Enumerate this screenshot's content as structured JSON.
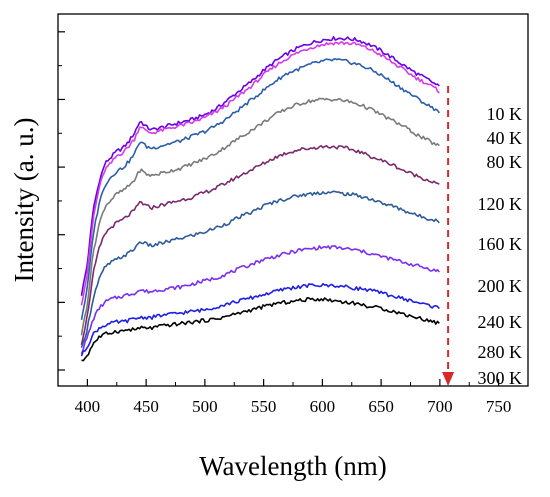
{
  "chart_data": {
    "type": "line",
    "xlabel": "Wavelength (nm)",
    "ylabel": "Intensity (a. u.)",
    "xlim": [
      375,
      775
    ],
    "x_ticks": [
      400,
      450,
      500,
      550,
      600,
      650,
      700,
      750
    ],
    "y_tick_labels_shown": false,
    "grid": false,
    "x": [
      395,
      400,
      405,
      410,
      415,
      420,
      425,
      430,
      435,
      440,
      445,
      450,
      455,
      460,
      470,
      480,
      490,
      500,
      510,
      520,
      530,
      540,
      550,
      560,
      570,
      580,
      590,
      600,
      610,
      620,
      630,
      640,
      650,
      660,
      670,
      680,
      690,
      700
    ],
    "series": [
      {
        "name": "10 K",
        "color": "#6a00e6",
        "values": [
          0.2,
          0.3,
          0.48,
          0.57,
          0.63,
          0.65,
          0.67,
          0.68,
          0.7,
          0.73,
          0.77,
          0.75,
          0.74,
          0.745,
          0.755,
          0.765,
          0.775,
          0.79,
          0.81,
          0.84,
          0.87,
          0.9,
          0.935,
          0.965,
          0.99,
          1.01,
          1.025,
          1.035,
          1.04,
          1.04,
          1.035,
          1.02,
          1.0,
          0.975,
          0.95,
          0.925,
          0.905,
          0.88
        ]
      },
      {
        "name": "40 K",
        "color": "#d43be8",
        "values": [
          0.17,
          0.27,
          0.45,
          0.55,
          0.61,
          0.63,
          0.655,
          0.665,
          0.685,
          0.71,
          0.755,
          0.735,
          0.73,
          0.735,
          0.745,
          0.755,
          0.765,
          0.78,
          0.8,
          0.825,
          0.855,
          0.885,
          0.92,
          0.95,
          0.975,
          0.995,
          1.01,
          1.02,
          1.025,
          1.025,
          1.02,
          1.005,
          0.985,
          0.96,
          0.935,
          0.91,
          0.89,
          0.865
        ]
      },
      {
        "name": "80 K",
        "color": "#2b5fa8",
        "values": [
          0.12,
          0.22,
          0.4,
          0.5,
          0.56,
          0.585,
          0.605,
          0.615,
          0.635,
          0.66,
          0.705,
          0.685,
          0.68,
          0.685,
          0.695,
          0.705,
          0.72,
          0.735,
          0.755,
          0.78,
          0.81,
          0.84,
          0.87,
          0.9,
          0.925,
          0.94,
          0.955,
          0.965,
          0.97,
          0.965,
          0.955,
          0.94,
          0.92,
          0.895,
          0.87,
          0.845,
          0.82,
          0.8
        ]
      },
      {
        "name": "120 K",
        "color": "#7a7a7a",
        "values": [
          0.07,
          0.17,
          0.34,
          0.43,
          0.49,
          0.51,
          0.53,
          0.54,
          0.555,
          0.575,
          0.61,
          0.595,
          0.59,
          0.595,
          0.605,
          0.615,
          0.63,
          0.645,
          0.665,
          0.69,
          0.715,
          0.74,
          0.765,
          0.79,
          0.81,
          0.825,
          0.835,
          0.84,
          0.84,
          0.835,
          0.825,
          0.81,
          0.79,
          0.77,
          0.75,
          0.725,
          0.705,
          0.685
        ]
      },
      {
        "name": "160 K",
        "color": "#7a2a6e",
        "values": [
          0.04,
          0.13,
          0.27,
          0.35,
          0.4,
          0.42,
          0.435,
          0.445,
          0.46,
          0.475,
          0.505,
          0.49,
          0.485,
          0.49,
          0.5,
          0.51,
          0.52,
          0.535,
          0.55,
          0.57,
          0.59,
          0.61,
          0.63,
          0.65,
          0.665,
          0.675,
          0.68,
          0.685,
          0.685,
          0.68,
          0.67,
          0.655,
          0.64,
          0.625,
          0.605,
          0.59,
          0.575,
          0.56
        ]
      },
      {
        "name": "200 K",
        "color": "#2d5b99",
        "values": [
          0.02,
          0.09,
          0.19,
          0.25,
          0.29,
          0.305,
          0.315,
          0.325,
          0.335,
          0.35,
          0.375,
          0.365,
          0.36,
          0.365,
          0.375,
          0.385,
          0.395,
          0.405,
          0.42,
          0.435,
          0.455,
          0.47,
          0.49,
          0.505,
          0.515,
          0.525,
          0.53,
          0.535,
          0.535,
          0.53,
          0.525,
          0.515,
          0.5,
          0.49,
          0.475,
          0.46,
          0.45,
          0.44
        ]
      },
      {
        "name": "240 K",
        "color": "#7b2ff0",
        "values": [
          0.01,
          0.06,
          0.12,
          0.155,
          0.175,
          0.185,
          0.19,
          0.195,
          0.2,
          0.205,
          0.215,
          0.21,
          0.21,
          0.215,
          0.22,
          0.225,
          0.235,
          0.245,
          0.255,
          0.27,
          0.285,
          0.3,
          0.315,
          0.325,
          0.335,
          0.345,
          0.35,
          0.355,
          0.355,
          0.35,
          0.345,
          0.335,
          0.325,
          0.315,
          0.305,
          0.295,
          0.285,
          0.275
        ]
      },
      {
        "name": "280 K",
        "color": "#1e1ee6",
        "values": [
          0.0,
          0.03,
          0.07,
          0.09,
          0.1,
          0.105,
          0.11,
          0.11,
          0.115,
          0.12,
          0.125,
          0.125,
          0.125,
          0.13,
          0.135,
          0.14,
          0.145,
          0.15,
          0.16,
          0.17,
          0.18,
          0.19,
          0.2,
          0.21,
          0.22,
          0.225,
          0.23,
          0.23,
          0.23,
          0.225,
          0.22,
          0.215,
          0.205,
          0.195,
          0.185,
          0.175,
          0.165,
          0.155
        ]
      },
      {
        "name": "300 K",
        "color": "#000000",
        "values": [
          -0.02,
          0.0,
          0.04,
          0.06,
          0.07,
          0.075,
          0.08,
          0.08,
          0.085,
          0.085,
          0.09,
          0.09,
          0.09,
          0.095,
          0.1,
          0.105,
          0.11,
          0.115,
          0.12,
          0.13,
          0.14,
          0.15,
          0.16,
          0.17,
          0.175,
          0.18,
          0.185,
          0.185,
          0.18,
          0.175,
          0.17,
          0.16,
          0.155,
          0.145,
          0.135,
          0.125,
          0.115,
          0.105
        ]
      }
    ],
    "annotation": {
      "type": "dashed-arrow",
      "direction": "down",
      "color": "#d62828",
      "x": 707
    }
  }
}
